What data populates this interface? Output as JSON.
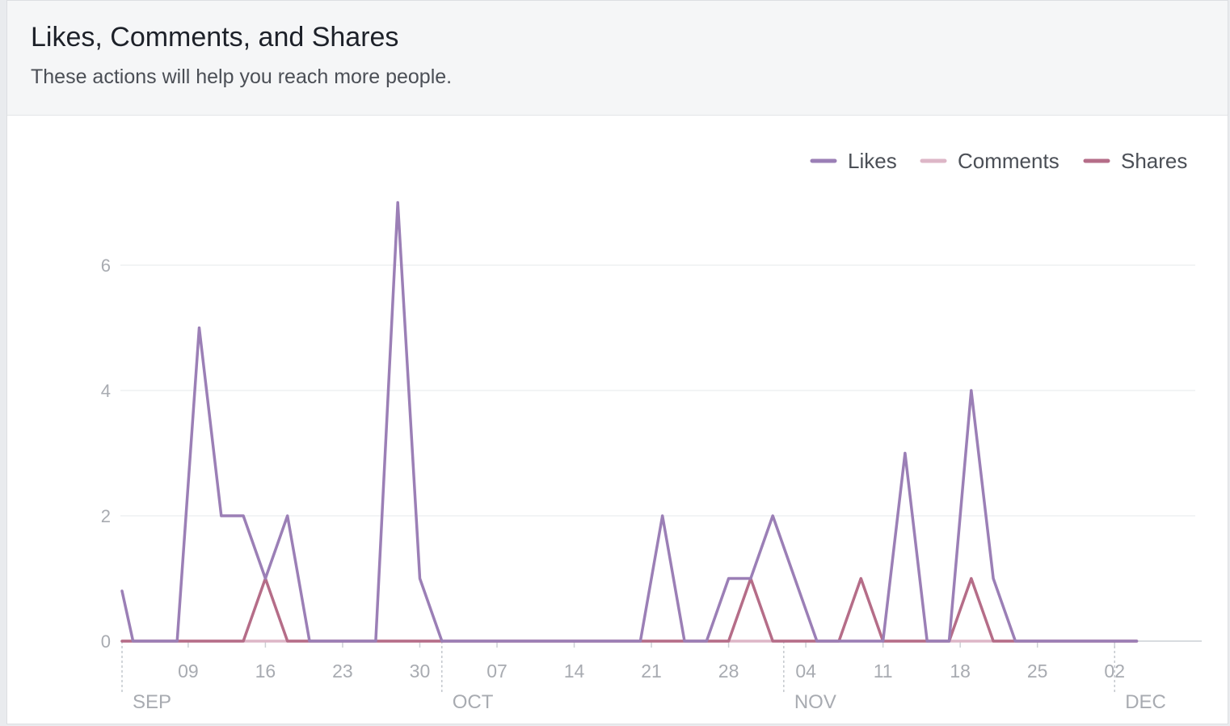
{
  "header": {
    "title": "Likes, Comments, and Shares",
    "subtitle": "These actions will help you reach more people."
  },
  "chart_data": {
    "type": "line",
    "title": "Likes, Comments, and Shares",
    "xlabel": "",
    "ylabel": "",
    "ylim": [
      0,
      7
    ],
    "yticks": [
      0,
      2,
      4,
      6
    ],
    "grid": true,
    "legend_position": "top-right",
    "start_day": 3,
    "end_day": 95,
    "x_ticks": [
      {
        "day": 9,
        "label": "09"
      },
      {
        "day": 16,
        "label": "16"
      },
      {
        "day": 23,
        "label": "23"
      },
      {
        "day": 30,
        "label": "30"
      },
      {
        "day": 37,
        "label": "07"
      },
      {
        "day": 44,
        "label": "14"
      },
      {
        "day": 51,
        "label": "21"
      },
      {
        "day": 58,
        "label": "28"
      },
      {
        "day": 65,
        "label": "04"
      },
      {
        "day": 72,
        "label": "11"
      },
      {
        "day": 79,
        "label": "18"
      },
      {
        "day": 86,
        "label": "25"
      },
      {
        "day": 93,
        "label": "02"
      }
    ],
    "months": [
      {
        "day": 3,
        "label": "SEP"
      },
      {
        "day": 32,
        "label": "OCT"
      },
      {
        "day": 63,
        "label": "NOV"
      },
      {
        "day": 93,
        "label": "DEC"
      }
    ],
    "series": [
      {
        "name": "Likes",
        "color": "#9b7fb6",
        "points": [
          [
            3,
            0.8
          ],
          [
            4,
            0
          ],
          [
            8,
            0
          ],
          [
            10,
            5
          ],
          [
            12,
            2
          ],
          [
            14,
            2
          ],
          [
            16,
            1
          ],
          [
            18,
            2
          ],
          [
            20,
            0
          ],
          [
            26,
            0
          ],
          [
            28,
            7
          ],
          [
            30,
            1
          ],
          [
            32,
            0
          ],
          [
            50,
            0
          ],
          [
            52,
            2
          ],
          [
            54,
            0
          ],
          [
            56,
            0
          ],
          [
            58,
            1
          ],
          [
            60,
            1
          ],
          [
            62,
            2
          ],
          [
            64,
            1
          ],
          [
            66,
            0
          ],
          [
            72,
            0
          ],
          [
            74,
            3
          ],
          [
            76,
            0
          ],
          [
            78,
            0
          ],
          [
            80,
            4
          ],
          [
            82,
            1
          ],
          [
            84,
            0
          ],
          [
            95,
            0
          ]
        ]
      },
      {
        "name": "Comments",
        "color": "#ddb6c7",
        "points": [
          [
            3,
            0
          ],
          [
            95,
            0
          ]
        ]
      },
      {
        "name": "Shares",
        "color": "#b56d88",
        "points": [
          [
            3,
            0
          ],
          [
            14,
            0
          ],
          [
            16,
            1
          ],
          [
            18,
            0
          ],
          [
            58,
            0
          ],
          [
            60,
            1
          ],
          [
            62,
            0
          ],
          [
            68,
            0
          ],
          [
            70,
            1
          ],
          [
            72,
            0
          ],
          [
            78,
            0
          ],
          [
            80,
            1
          ],
          [
            82,
            0
          ],
          [
            95,
            0
          ]
        ]
      }
    ]
  }
}
